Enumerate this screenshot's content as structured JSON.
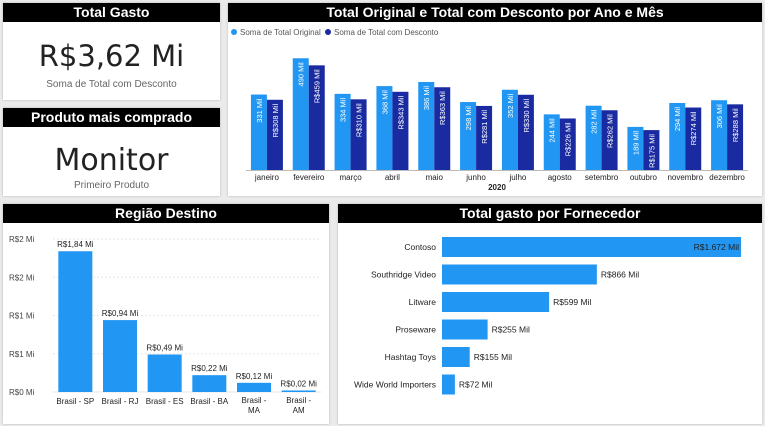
{
  "kpi_total": {
    "title": "Total Gasto",
    "value": "R$3,62 Mi",
    "label": "Soma de Total com Desconto"
  },
  "kpi_product": {
    "title": "Produto mais comprado",
    "value": "Monitor",
    "label": "Primeiro Produto"
  },
  "colors": {
    "original": "#2196f3",
    "desconto": "#1a2aa0",
    "region_bar": "#2196f3",
    "supplier_bar": "#2196f3",
    "title_bg": "#000000"
  },
  "chart_data": [
    {
      "id": "monthly",
      "type": "bar",
      "title": "Total Original e Total com Desconto por Ano e Mês",
      "x_group_label": "2020",
      "legend_position": "top-left",
      "categories": [
        "janeiro",
        "fevereiro",
        "março",
        "abril",
        "maio",
        "junho",
        "julho",
        "agosto",
        "setembro",
        "outubro",
        "novembro",
        "dezembro"
      ],
      "series": [
        {
          "name": "Soma de Total Original",
          "values": [
            331,
            490,
            334,
            368,
            386,
            298,
            352,
            244,
            282,
            189,
            294,
            306
          ],
          "labels": [
            "331 Mil",
            "490 Mil",
            "334 Mil",
            "368 Mil",
            "386 Mil",
            "298 Mil",
            "352 Mil",
            "244 Mil",
            "282 Mil",
            "189 Mil",
            "294 Mil",
            "306 Mil"
          ]
        },
        {
          "name": "Soma de Total com Desconto",
          "values": [
            308,
            459,
            310,
            343,
            363,
            281,
            330,
            226,
            262,
            175,
            274,
            288
          ],
          "labels": [
            "R$308 Mil",
            "R$459 Mil",
            "R$310 Mil",
            "R$343 Mil",
            "R$363 Mil",
            "R$281 Mil",
            "R$330 Mil",
            "R$226 Mil",
            "R$262 Mil",
            "R$175 Mil",
            "R$274 Mil",
            "R$288 Mil"
          ]
        }
      ],
      "ylim": [
        0,
        500
      ],
      "grid": false
    },
    {
      "id": "region",
      "type": "bar",
      "title": "Região Destino",
      "categories": [
        "Brasil - SP",
        "Brasil - RJ",
        "Brasil - ES",
        "Brasil - BA",
        "Brasil - MA",
        "Brasil - AM"
      ],
      "values": [
        1.84,
        0.94,
        0.49,
        0.22,
        0.12,
        0.02
      ],
      "data_labels": [
        "R$1,84 Mi",
        "R$0,94 Mi",
        "R$0,49 Mi",
        "R$0,22 Mi",
        "R$0,12 Mi",
        "R$0,02 Mi"
      ],
      "y_ticks": [
        {
          "value": 0,
          "label": "R$0 Mi"
        },
        {
          "value": 0.5,
          "label": "R$1 Mi"
        },
        {
          "value": 1.0,
          "label": "R$1 Mi"
        },
        {
          "value": 1.5,
          "label": "R$2 Mi"
        },
        {
          "value": 2.0,
          "label": "R$2 Mi"
        }
      ],
      "ylim": [
        0,
        2.0
      ],
      "grid": true
    },
    {
      "id": "supplier",
      "type": "bar",
      "orientation": "horizontal",
      "title": "Total gasto por Fornecedor",
      "categories": [
        "Contoso",
        "Southridge Video",
        "Litware",
        "Proseware",
        "Hashtag Toys",
        "Wide World Importers"
      ],
      "values": [
        1672,
        866,
        599,
        255,
        155,
        72
      ],
      "data_labels": [
        "R$1.672 Mil",
        "R$866 Mil",
        "R$599 Mil",
        "R$255 Mil",
        "R$155 Mil",
        "R$72 Mil"
      ],
      "xlim": [
        0,
        1700
      ],
      "grid": false
    }
  ]
}
